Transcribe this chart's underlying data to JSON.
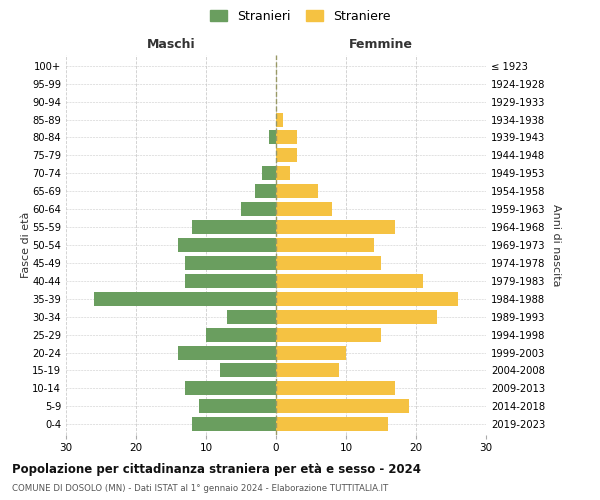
{
  "age_groups": [
    "0-4",
    "5-9",
    "10-14",
    "15-19",
    "20-24",
    "25-29",
    "30-34",
    "35-39",
    "40-44",
    "45-49",
    "50-54",
    "55-59",
    "60-64",
    "65-69",
    "70-74",
    "75-79",
    "80-84",
    "85-89",
    "90-94",
    "95-99",
    "100+"
  ],
  "birth_years": [
    "2019-2023",
    "2014-2018",
    "2009-2013",
    "2004-2008",
    "1999-2003",
    "1994-1998",
    "1989-1993",
    "1984-1988",
    "1979-1983",
    "1974-1978",
    "1969-1973",
    "1964-1968",
    "1959-1963",
    "1954-1958",
    "1949-1953",
    "1944-1948",
    "1939-1943",
    "1934-1938",
    "1929-1933",
    "1924-1928",
    "≤ 1923"
  ],
  "males": [
    12,
    11,
    13,
    8,
    14,
    10,
    7,
    26,
    13,
    13,
    14,
    12,
    5,
    3,
    2,
    0,
    1,
    0,
    0,
    0,
    0
  ],
  "females": [
    16,
    19,
    17,
    9,
    10,
    15,
    23,
    26,
    21,
    15,
    14,
    17,
    8,
    6,
    2,
    3,
    3,
    1,
    0,
    0,
    0
  ],
  "male_color": "#6a9e5f",
  "female_color": "#f5c242",
  "title": "Popolazione per cittadinanza straniera per età e sesso - 2024",
  "subtitle": "COMUNE DI DOSOLO (MN) - Dati ISTAT al 1° gennaio 2024 - Elaborazione TUTTITALIA.IT",
  "xlabel_left": "Maschi",
  "xlabel_right": "Femmine",
  "ylabel_left": "Fasce di età",
  "ylabel_right": "Anni di nascita",
  "legend_male": "Stranieri",
  "legend_female": "Straniere",
  "xlim": 30,
  "background_color": "#ffffff",
  "grid_color": "#cccccc"
}
